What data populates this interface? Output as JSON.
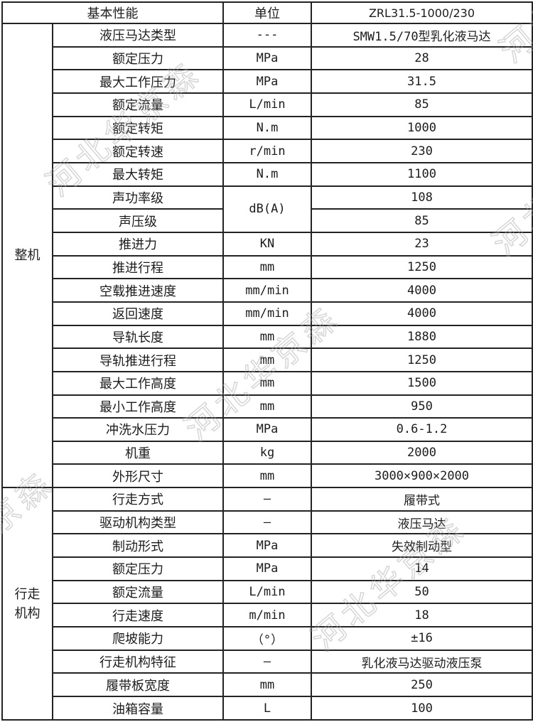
{
  "table": {
    "header": {
      "basic_performance": "基本性能",
      "unit": "单位",
      "model": "ZRL31.5-1000/230"
    },
    "sections": [
      {
        "id": "complete-machine",
        "group": "整机",
        "rows": [
          {
            "name": "液压马达类型",
            "unit": "---",
            "value": "SMW1.5/70型乳化液马达"
          },
          {
            "name": "额定压力",
            "unit": "MPa",
            "value": "28"
          },
          {
            "name": "最大工作压力",
            "unit": "MPa",
            "value": "31.5"
          },
          {
            "name": "额定流量",
            "unit": "L/min",
            "value": "85"
          },
          {
            "name": "额定转矩",
            "unit": "N.m",
            "value": "1000"
          },
          {
            "name": "额定转速",
            "unit": "r/min",
            "value": "230"
          },
          {
            "name": "最大转矩",
            "unit": "N.m",
            "value": "1100"
          },
          {
            "name": "声功率级",
            "unit": "dB(A)",
            "unit_rowspan": 2,
            "value": "108"
          },
          {
            "name": "声压级",
            "unit": null,
            "value": "85"
          },
          {
            "name": "推进力",
            "unit": "KN",
            "value": "23"
          },
          {
            "name": "推进行程",
            "unit": "mm",
            "value": "1250"
          },
          {
            "name": "空载推进速度",
            "unit": "mm/min",
            "value": "4000"
          },
          {
            "name": "返回速度",
            "unit": "mm/min",
            "value": "4000"
          },
          {
            "name": "导轨长度",
            "unit": "mm",
            "value": "1880"
          },
          {
            "name": "导轨推进行程",
            "unit": "mm",
            "value": "1250"
          },
          {
            "name": "最大工作高度",
            "unit": "mm",
            "value": "1500"
          },
          {
            "name": "最小工作高度",
            "unit": "mm",
            "value": "950"
          },
          {
            "name": "冲洗水压力",
            "unit": "MPa",
            "value": "0.6-1.2"
          },
          {
            "name": "机重",
            "unit": "kg",
            "value": "2000"
          },
          {
            "name": "外形尺寸",
            "unit": "mm",
            "value": "3000×900×2000"
          }
        ]
      },
      {
        "id": "travel-mechanism",
        "group": "行走机构",
        "rows": [
          {
            "name": "行走方式",
            "unit": "—",
            "value": "履带式"
          },
          {
            "name": "驱动机构类型",
            "unit": "—",
            "value": "液压马达"
          },
          {
            "name": "制动形式",
            "unit": "MPa",
            "value": "失效制动型"
          },
          {
            "name": "额定压力",
            "unit": "MPa",
            "value": "14"
          },
          {
            "name": "额定流量",
            "unit": "L/min",
            "value": "50"
          },
          {
            "name": "行走速度",
            "unit": "m/min",
            "value": "18"
          },
          {
            "name": "爬坡能力",
            "unit": "（°）",
            "value": "±16"
          },
          {
            "name": "行走机构特征",
            "unit": "—",
            "value": "乳化液马达驱动液压泵"
          },
          {
            "name": "履带板宽度",
            "unit": "mm",
            "value": "250"
          },
          {
            "name": "油箱容量",
            "unit": "L",
            "value": "100"
          }
        ]
      }
    ]
  },
  "watermark": {
    "text": "河北华京森"
  },
  "colors": {
    "background": "#ffffff",
    "border": "#232323",
    "text": "#1c1c1c",
    "watermark_outline": "#a5a5a5"
  }
}
